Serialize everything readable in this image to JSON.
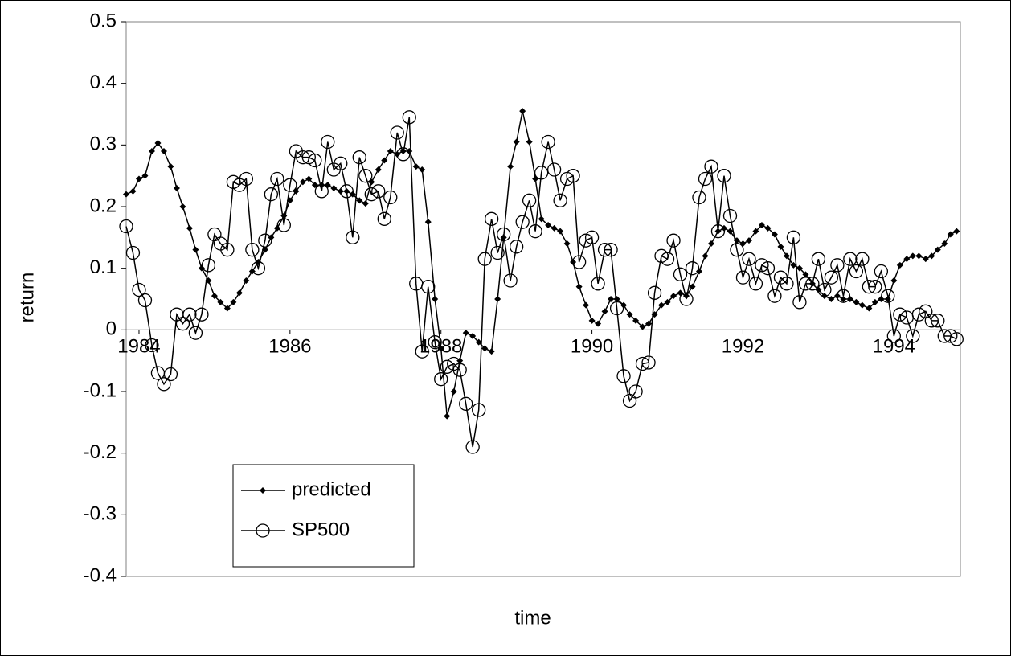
{
  "chart_data": {
    "type": "line",
    "x_label": "time",
    "y_label": "return",
    "x": [
      1983.83,
      1983.92,
      1984.0,
      1984.08,
      1984.17,
      1984.25,
      1984.33,
      1984.42,
      1984.5,
      1984.58,
      1984.67,
      1984.75,
      1984.83,
      1984.92,
      1985.0,
      1985.08,
      1985.17,
      1985.25,
      1985.33,
      1985.42,
      1985.5,
      1985.58,
      1985.67,
      1985.75,
      1985.83,
      1985.92,
      1986.0,
      1986.08,
      1986.17,
      1986.25,
      1986.33,
      1986.42,
      1986.5,
      1986.58,
      1986.67,
      1986.75,
      1986.83,
      1986.92,
      1987.0,
      1987.08,
      1987.17,
      1987.25,
      1987.33,
      1987.42,
      1987.5,
      1987.58,
      1987.67,
      1987.75,
      1987.83,
      1987.92,
      1988.0,
      1988.08,
      1988.17,
      1988.25,
      1988.33,
      1988.42,
      1988.5,
      1988.58,
      1988.67,
      1988.75,
      1988.83,
      1988.92,
      1989.0,
      1989.08,
      1989.17,
      1989.25,
      1989.33,
      1989.42,
      1989.5,
      1989.58,
      1989.67,
      1989.75,
      1989.83,
      1989.92,
      1990.0,
      1990.08,
      1990.17,
      1990.25,
      1990.33,
      1990.42,
      1990.5,
      1990.58,
      1990.67,
      1990.75,
      1990.83,
      1990.92,
      1991.0,
      1991.08,
      1991.17,
      1991.25,
      1991.33,
      1991.42,
      1991.5,
      1991.58,
      1991.67,
      1991.75,
      1991.83,
      1991.92,
      1992.0,
      1992.08,
      1992.17,
      1992.25,
      1992.33,
      1992.42,
      1992.5,
      1992.58,
      1992.67,
      1992.75,
      1992.83,
      1992.92,
      1993.0,
      1993.08,
      1993.17,
      1993.25,
      1993.33,
      1993.42,
      1993.5,
      1993.58,
      1993.67,
      1993.75,
      1993.83,
      1993.92,
      1994.0,
      1994.08,
      1994.17,
      1994.25,
      1994.33,
      1994.42,
      1994.5,
      1994.58,
      1994.67,
      1994.75,
      1994.83
    ],
    "series": [
      {
        "name": "predicted",
        "color": "#000000",
        "marker": "diamond",
        "values": [
          0.22,
          0.225,
          0.245,
          0.25,
          0.29,
          0.303,
          0.29,
          0.265,
          0.23,
          0.2,
          0.165,
          0.13,
          0.1,
          0.08,
          0.055,
          0.045,
          0.035,
          0.045,
          0.06,
          0.08,
          0.095,
          0.11,
          0.13,
          0.15,
          0.165,
          0.185,
          0.21,
          0.225,
          0.24,
          0.245,
          0.235,
          0.235,
          0.235,
          0.23,
          0.225,
          0.225,
          0.22,
          0.21,
          0.205,
          0.24,
          0.26,
          0.275,
          0.29,
          0.285,
          0.29,
          0.29,
          0.265,
          0.26,
          0.175,
          0.05,
          -0.03,
          -0.14,
          -0.1,
          -0.05,
          -0.005,
          -0.01,
          -0.02,
          -0.03,
          -0.035,
          0.05,
          0.15,
          0.265,
          0.305,
          0.355,
          0.305,
          0.245,
          0.18,
          0.17,
          0.165,
          0.16,
          0.14,
          0.11,
          0.07,
          0.04,
          0.015,
          0.01,
          0.03,
          0.05,
          0.05,
          0.04,
          0.025,
          0.015,
          0.005,
          0.01,
          0.025,
          0.04,
          0.045,
          0.055,
          0.06,
          0.055,
          0.07,
          0.095,
          0.12,
          0.14,
          0.16,
          0.165,
          0.16,
          0.145,
          0.14,
          0.145,
          0.16,
          0.17,
          0.165,
          0.155,
          0.135,
          0.12,
          0.105,
          0.1,
          0.09,
          0.075,
          0.065,
          0.055,
          0.05,
          0.055,
          0.05,
          0.05,
          0.045,
          0.04,
          0.035,
          0.045,
          0.05,
          0.05,
          0.08,
          0.105,
          0.115,
          0.12,
          0.12,
          0.115,
          0.12,
          0.13,
          0.14,
          0.155,
          0.16
        ]
      },
      {
        "name": "SP500",
        "color": "#000000",
        "marker": "circle",
        "values": [
          0.168,
          0.125,
          0.065,
          0.048,
          -0.025,
          -0.07,
          -0.088,
          -0.072,
          0.025,
          0.01,
          0.025,
          -0.005,
          0.025,
          0.105,
          0.155,
          0.14,
          0.13,
          0.24,
          0.235,
          0.245,
          0.13,
          0.1,
          0.145,
          0.22,
          0.245,
          0.17,
          0.235,
          0.29,
          0.28,
          0.28,
          0.275,
          0.225,
          0.305,
          0.26,
          0.27,
          0.225,
          0.15,
          0.28,
          0.25,
          0.22,
          0.225,
          0.18,
          0.215,
          0.32,
          0.285,
          0.345,
          0.075,
          -0.035,
          0.07,
          -0.02,
          -0.08,
          -0.06,
          -0.055,
          -0.065,
          -0.12,
          -0.19,
          -0.13,
          0.115,
          0.18,
          0.125,
          0.155,
          0.08,
          0.135,
          0.175,
          0.21,
          0.16,
          0.255,
          0.305,
          0.26,
          0.21,
          0.245,
          0.25,
          0.11,
          0.145,
          0.15,
          0.075,
          0.13,
          0.13,
          0.035,
          -0.075,
          -0.115,
          -0.1,
          -0.055,
          -0.053,
          0.06,
          0.12,
          0.115,
          0.145,
          0.09,
          0.05,
          0.1,
          0.215,
          0.245,
          0.265,
          0.16,
          0.25,
          0.185,
          0.13,
          0.085,
          0.115,
          0.075,
          0.105,
          0.1,
          0.055,
          0.085,
          0.075,
          0.15,
          0.045,
          0.075,
          0.075,
          0.115,
          0.065,
          0.085,
          0.105,
          0.055,
          0.115,
          0.095,
          0.115,
          0.07,
          0.07,
          0.095,
          0.055,
          -0.01,
          0.025,
          0.02,
          -0.01,
          0.025,
          0.03,
          0.015,
          0.015,
          -0.01,
          -0.01,
          -0.015
        ]
      }
    ],
    "xlim": [
      1983.83,
      1994.88
    ],
    "xticks": [
      1984,
      1986,
      1988,
      1990,
      1992,
      1994
    ],
    "ylim": [
      -0.4,
      0.5
    ],
    "yticks": [
      -0.4,
      -0.3,
      -0.2,
      -0.1,
      0,
      0.1,
      0.2,
      0.3,
      0.4,
      0.5
    ],
    "grid": false,
    "legend": "lower left"
  }
}
